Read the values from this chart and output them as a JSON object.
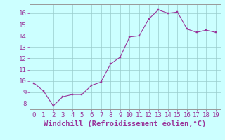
{
  "x": [
    0,
    1,
    2,
    3,
    4,
    5,
    6,
    7,
    8,
    9,
    10,
    11,
    12,
    13,
    14,
    15,
    16,
    17,
    18,
    19
  ],
  "y": [
    9.8,
    9.1,
    7.8,
    8.6,
    8.8,
    8.8,
    9.6,
    9.9,
    11.5,
    12.1,
    13.9,
    14.0,
    15.5,
    16.3,
    16.0,
    16.1,
    14.6,
    14.3,
    14.5,
    14.3
  ],
  "line_color": "#993399",
  "marker_color": "#993399",
  "bg_color": "#ccffff",
  "grid_color": "#99cccc",
  "xlabel": "Windchill (Refroidissement éolien,°C)",
  "xlim": [
    -0.5,
    19.5
  ],
  "ylim": [
    7.5,
    16.8
  ],
  "yticks": [
    8,
    9,
    10,
    11,
    12,
    13,
    14,
    15,
    16
  ],
  "xticks": [
    0,
    1,
    2,
    3,
    4,
    5,
    6,
    7,
    8,
    9,
    10,
    11,
    12,
    13,
    14,
    15,
    16,
    17,
    18,
    19
  ],
  "xlabel_fontsize": 7.5,
  "tick_fontsize": 6.5,
  "line_color_spine": "#999999"
}
